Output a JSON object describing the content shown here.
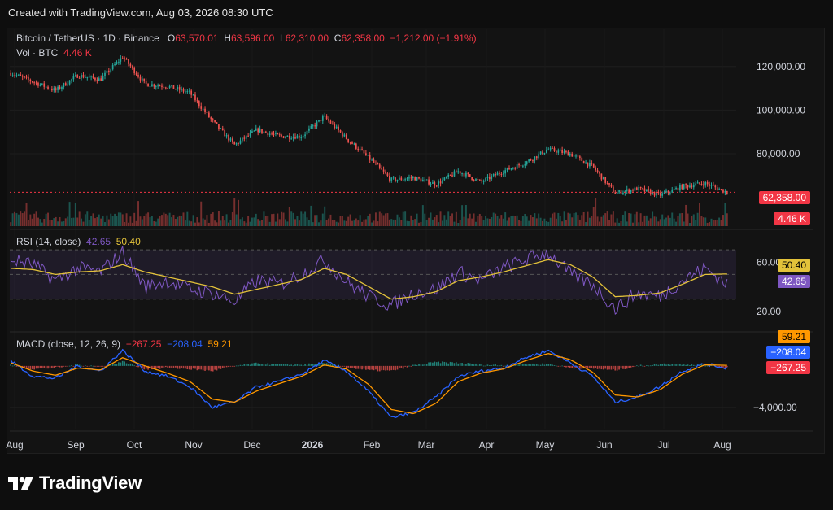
{
  "header": {
    "created": "Created with TradingView.com, Aug 03, 2026 08:30 UTC"
  },
  "symbol": {
    "name": "Bitcoin / TetherUS · 1D · Binance",
    "o_label": "O",
    "o": "63,570.01",
    "h_label": "H",
    "h": "63,596.00",
    "l_label": "L",
    "l": "62,310.00",
    "c_label": "C",
    "c": "62,358.00",
    "change": "−1,212.00 (−1.91%)"
  },
  "volume": {
    "label": "Vol · BTC",
    "value": "4.46 K"
  },
  "rsi": {
    "label": "RSI (14, close)",
    "value": "42.65",
    "ma": "50.40"
  },
  "macd": {
    "label": "MACD (close, 12, 26, 9)",
    "hist": "−267.25",
    "macd": "−208.04",
    "signal": "59.21"
  },
  "price_tags": {
    "last": "62,358.00",
    "vol": "4.46 K",
    "rsi_ma": "50.40",
    "rsi": "42.65",
    "macd_signal": "59.21",
    "macd": "−208.04",
    "macd_hist": "−267.25"
  },
  "logo": {
    "text": "TradingView"
  },
  "colors": {
    "up": "#26a69a",
    "down": "#ef5350",
    "rsi": "#7e57c2",
    "rsi_ma": "#e3c23a",
    "macd": "#2962ff",
    "signal": "#ff9800"
  },
  "chart_data": [
    {
      "type": "candlestick",
      "title": "Bitcoin / TetherUS · 1D · Binance",
      "x_ticks": [
        "Aug",
        "Sep",
        "Oct",
        "Nov",
        "Dec",
        "2026",
        "Feb",
        "Mar",
        "Apr",
        "May",
        "Jun",
        "Jul",
        "Aug"
      ],
      "y_ticks": [
        "120,000.00",
        "100,000.00",
        "80,000.00"
      ],
      "ylim": [
        58000,
        130000
      ],
      "dates": [
        "2025-08-01",
        "2025-08-15",
        "2025-09-01",
        "2025-09-15",
        "2025-10-01",
        "2025-10-06",
        "2025-10-11",
        "2025-10-25",
        "2025-11-01",
        "2025-11-15",
        "2025-11-21",
        "2025-12-01",
        "2025-12-15",
        "2026-01-01",
        "2026-01-14",
        "2026-01-25",
        "2026-02-01",
        "2026-02-06",
        "2026-02-15",
        "2026-03-01",
        "2026-03-15",
        "2026-04-01",
        "2026-04-15",
        "2026-05-01",
        "2026-05-10",
        "2026-05-20",
        "2026-06-01",
        "2026-06-05",
        "2026-06-15",
        "2026-06-25",
        "2026-07-01",
        "2026-07-15",
        "2026-08-02"
      ],
      "close": [
        117000,
        113000,
        109000,
        116000,
        114000,
        124500,
        112000,
        111000,
        108000,
        95000,
        84000,
        91000,
        88000,
        88000,
        97000,
        87000,
        78000,
        68000,
        69000,
        66000,
        72000,
        67000,
        72000,
        76000,
        82000,
        80000,
        74000,
        62000,
        64000,
        61000,
        65000,
        66500,
        62358
      ],
      "last_price": 62358.0
    },
    {
      "type": "bar",
      "name": "Volume",
      "last": "4.46 K"
    },
    {
      "type": "line",
      "name": "RSI (14, close)",
      "y_ticks": [
        "60.00",
        "20.00"
      ],
      "ylim": [
        10,
        80
      ],
      "bands": [
        30,
        70
      ],
      "values": [
        62,
        58,
        45,
        55,
        52,
        68,
        40,
        45,
        38,
        35,
        28,
        45,
        42,
        50,
        62,
        44,
        32,
        25,
        35,
        38,
        52,
        45,
        55,
        62,
        68,
        50,
        42,
        22,
        35,
        32,
        45,
        55,
        42.65
      ],
      "ma_values": [
        55,
        54,
        50,
        52,
        53,
        58,
        52,
        48,
        44,
        40,
        34,
        38,
        42,
        46,
        55,
        50,
        40,
        30,
        32,
        36,
        45,
        48,
        52,
        57,
        62,
        58,
        48,
        32,
        33,
        35,
        42,
        50,
        50.4
      ]
    },
    {
      "type": "line",
      "name": "MACD (close, 12, 26, 9)",
      "y_ticks": [
        "−4,000.00"
      ],
      "ylim": [
        -5500,
        2500
      ],
      "macd_values": [
        500,
        -1000,
        -1200,
        0,
        -500,
        1500,
        -500,
        -1000,
        -2000,
        -4000,
        -3500,
        -2000,
        -1500,
        -800,
        500,
        -500,
        -2500,
        -5000,
        -4500,
        -3000,
        -1000,
        -500,
        -200,
        800,
        1500,
        300,
        -1000,
        -3500,
        -3000,
        -2000,
        -500,
        200,
        -208.04
      ],
      "signal_values": [
        300,
        -500,
        -900,
        -200,
        -400,
        800,
        0,
        -700,
        -1500,
        -3200,
        -3500,
        -2400,
        -1700,
        -1000,
        100,
        -300,
        -1800,
        -4200,
        -4600,
        -3600,
        -1500,
        -700,
        -300,
        500,
        1200,
        600,
        -600,
        -2800,
        -3000,
        -2300,
        -800,
        100,
        59.21
      ],
      "hist_last": -267.25
    }
  ]
}
